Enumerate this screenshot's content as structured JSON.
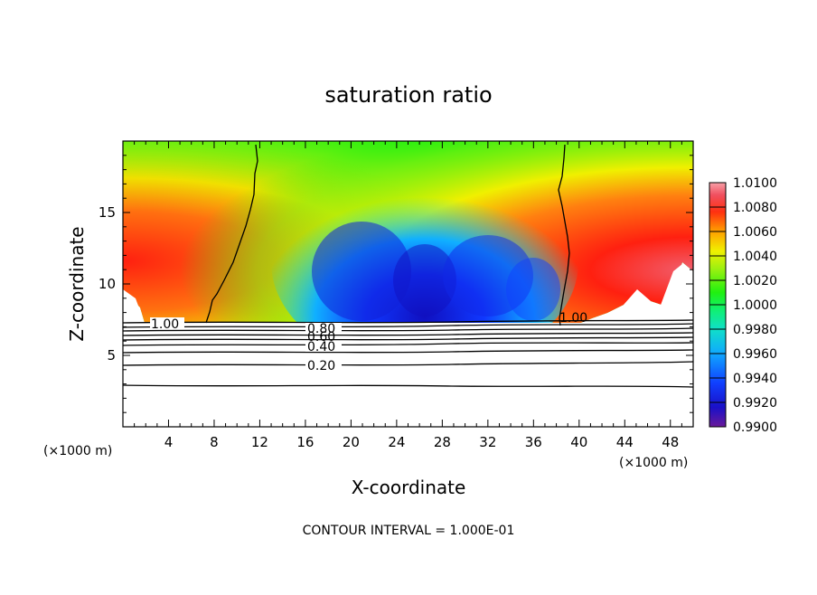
{
  "chart_data": {
    "type": "heatmap",
    "title": "saturation ratio",
    "xlabel": "X-coordinate",
    "ylabel": "Z-coordinate",
    "x_unit": "(×1000 m)",
    "z_unit": "(×1000 m)",
    "xlim": [
      0,
      50
    ],
    "zlim": [
      0,
      20
    ],
    "x_ticks": [
      "4",
      "8",
      "12",
      "16",
      "20",
      "24",
      "28",
      "32",
      "36",
      "40",
      "44",
      "48"
    ],
    "z_ticks": [
      "5",
      "10",
      "15"
    ],
    "colorbar": {
      "levels": [
        "1.0100",
        "1.0080",
        "1.0060",
        "1.0040",
        "1.0020",
        "1.0000",
        "0.9980",
        "0.9960",
        "0.9940",
        "0.9920",
        "0.9900"
      ],
      "range": [
        0.99,
        1.01
      ]
    },
    "contour_labels": [
      "1.00",
      "1.00",
      "0.80",
      "0.60",
      "0.40",
      "0.20"
    ],
    "footer": "CONTOUR INTERVAL = 1.000E-01"
  }
}
